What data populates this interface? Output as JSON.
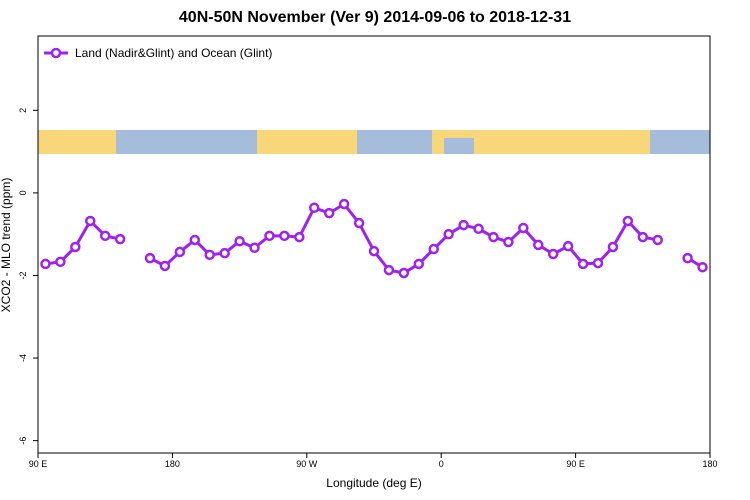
{
  "chart_data": {
    "type": "line",
    "title": "40N-50N November (Ver 9)   2014-09-06 to 2018-12-31",
    "xlabel": "Longitude (deg E)",
    "ylabel": "XCO2 - MLO trend (ppm)",
    "x": [
      95,
      105,
      115,
      125,
      135,
      145,
      155,
      165,
      175,
      185,
      195,
      205,
      215,
      225,
      235,
      245,
      255,
      265,
      275,
      285,
      295,
      305,
      315,
      325,
      335,
      345,
      355,
      365,
      375,
      385,
      395,
      405,
      415,
      425,
      435,
      445,
      455,
      465,
      475,
      485,
      495,
      505,
      515,
      525,
      535
    ],
    "series": [
      {
        "name": "Land (Nadir&Glint) and Ocean (Glint)",
        "color": "#a020f0",
        "values": [
          -1.72,
          -1.67,
          -1.31,
          -0.68,
          -1.04,
          -1.12,
          null,
          -1.58,
          -1.77,
          -1.43,
          -1.14,
          -1.5,
          -1.46,
          -1.17,
          -1.33,
          -1.04,
          -1.04,
          -1.07,
          -0.36,
          -0.49,
          -0.27,
          -0.73,
          -1.41,
          -1.87,
          -1.94,
          -1.72,
          -1.36,
          -1.0,
          -0.78,
          -0.87,
          -1.07,
          -1.19,
          -0.85,
          -1.26,
          -1.48,
          -1.29,
          -1.72,
          -1.7,
          -1.31,
          -0.68,
          -1.07,
          -1.14,
          null,
          -1.58,
          -1.8
        ]
      }
    ],
    "xlim": [
      90,
      540
    ],
    "xticks": [
      {
        "value": 90,
        "label": "90 E"
      },
      {
        "value": 180,
        "label": "180"
      },
      {
        "value": 270,
        "label": "90 W"
      },
      {
        "value": 360,
        "label": "0"
      },
      {
        "value": 450,
        "label": "90 E"
      },
      {
        "value": 540,
        "label": "180"
      }
    ],
    "ylim": [
      -6.3,
      3.8
    ],
    "yticks": [
      2,
      0,
      -2,
      -4,
      -6
    ],
    "legend": "top-left"
  }
}
